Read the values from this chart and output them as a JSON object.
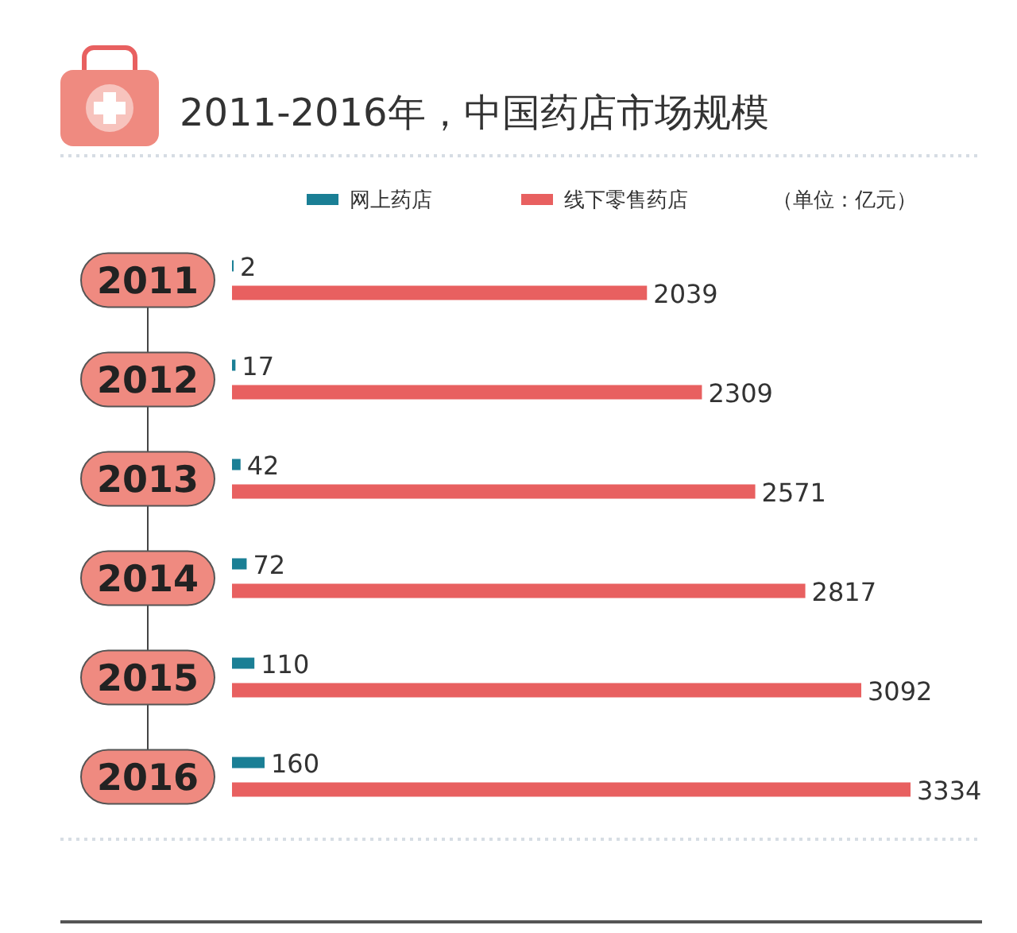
{
  "chart_data": {
    "type": "bar",
    "orientation": "horizontal",
    "title": "2011-2016年，中国药店市场规模",
    "subtitle": "（单位：亿元）",
    "categories": [
      "2011",
      "2012",
      "2013",
      "2014",
      "2015",
      "2016"
    ],
    "series": [
      {
        "name": "网上药店",
        "color": "#1a7f95",
        "values": [
          2,
          17,
          42,
          72,
          110,
          160
        ]
      },
      {
        "name": "线下零售药店",
        "color": "#e86060",
        "values": [
          2039,
          2309,
          2571,
          2817,
          3092,
          3334
        ]
      }
    ],
    "data_labels": true,
    "legend": "top"
  }
}
